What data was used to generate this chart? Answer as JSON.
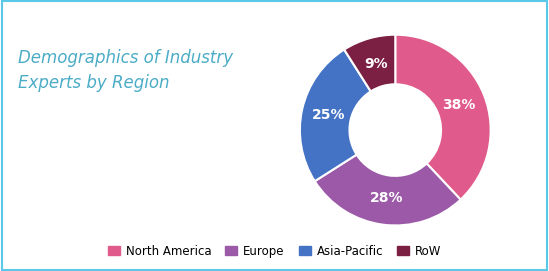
{
  "title_line1": "Demographics of Industry",
  "title_line2": "Experts by Region",
  "title_color": "#4bacc6",
  "title_fontsize": 12,
  "labels": [
    "North America",
    "Europe",
    "Asia-Pacific",
    "RoW"
  ],
  "values": [
    38,
    28,
    25,
    9
  ],
  "colors": [
    "#e05b8b",
    "#9b59a8",
    "#4472c4",
    "#7b2042"
  ],
  "pct_labels": [
    "38%",
    "28%",
    "25%",
    "9%"
  ],
  "background_color": "#ffffff",
  "border_color": "#5bc8e8",
  "legend_fontsize": 8.5,
  "wedge_text_color": "#ffffff",
  "wedge_text_fontsize": 10,
  "donut_width": 0.52
}
